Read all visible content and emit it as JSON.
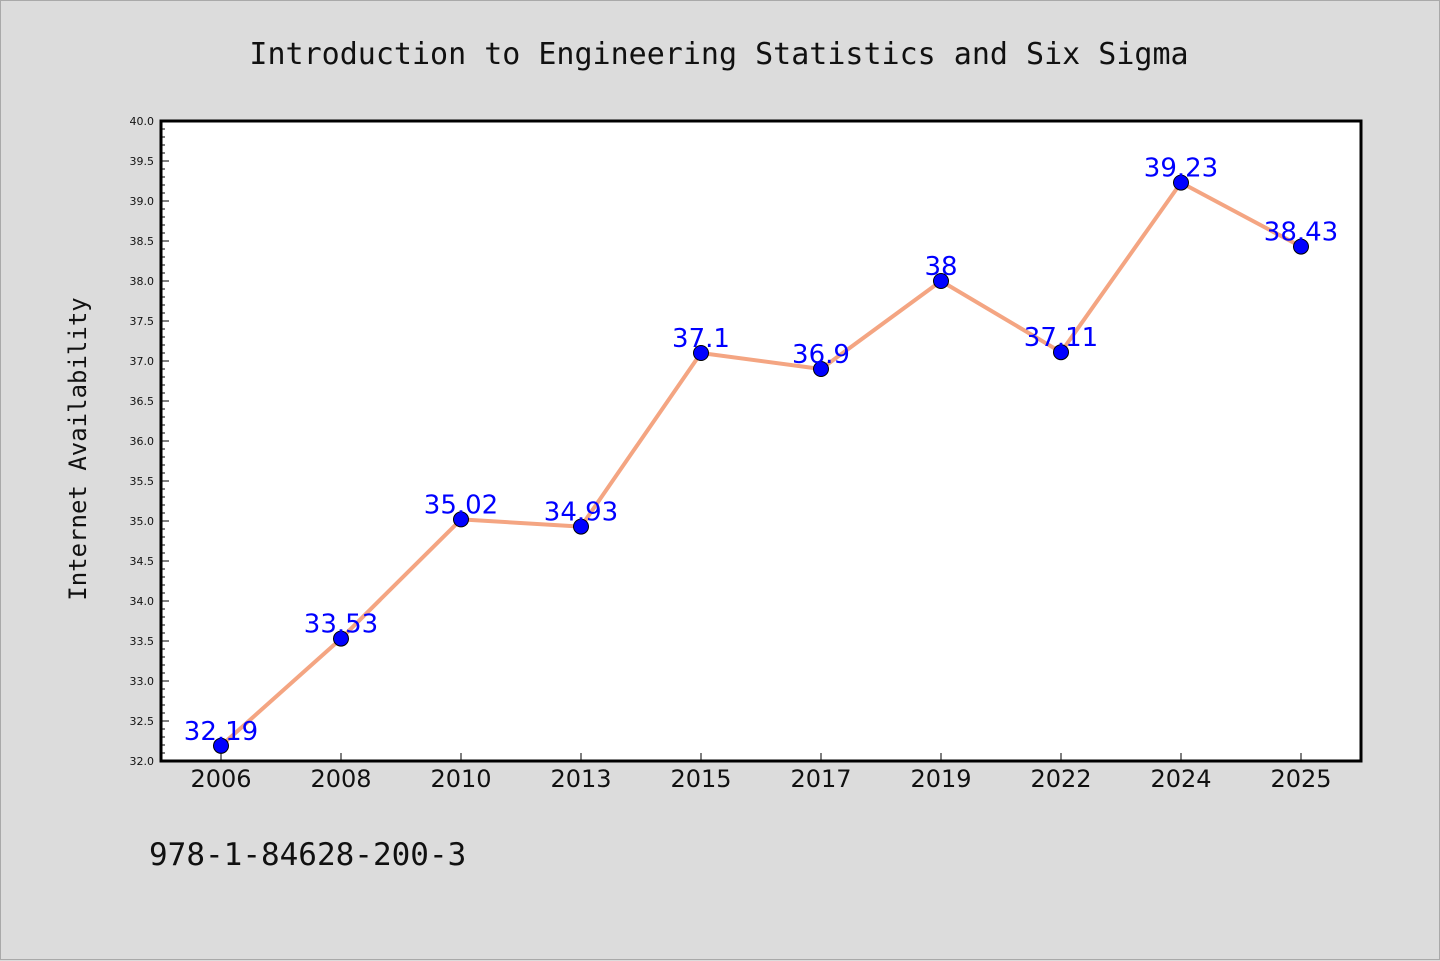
{
  "chart_data": {
    "type": "line",
    "title": "Introduction to Engineering Statistics and Six Sigma",
    "xlabel": "",
    "ylabel": "Internet Availability",
    "categories": [
      "2006",
      "2008",
      "2010",
      "2013",
      "2015",
      "2017",
      "2019",
      "2022",
      "2024",
      "2025"
    ],
    "series": [
      {
        "values": [
          32.19,
          33.53,
          35.02,
          34.93,
          37.1,
          36.9,
          38,
          37.11,
          39.23,
          38.43
        ],
        "labels": [
          "32.19",
          "33.53",
          "35.02",
          "34.93",
          "37.1",
          "36.9",
          "38",
          "37.11",
          "39.23",
          "38.43"
        ]
      }
    ],
    "ylim": [
      32.0,
      40.0
    ],
    "yticks": [
      "32.0",
      "32.5",
      "33.0",
      "33.5",
      "34.0",
      "34.5",
      "35.0",
      "35.5",
      "36.0",
      "36.5",
      "37.0",
      "37.5",
      "38.0",
      "38.5",
      "39.0",
      "39.5",
      "40.0"
    ],
    "line_color": "#f4a582",
    "marker_color": "#0000ff",
    "label_color": "#0000ff",
    "background_color": "#dcdcdc",
    "plot_background": "#ffffff",
    "grid": false,
    "legend": "none"
  },
  "footer": {
    "isbn": "978-1-84628-200-3"
  }
}
